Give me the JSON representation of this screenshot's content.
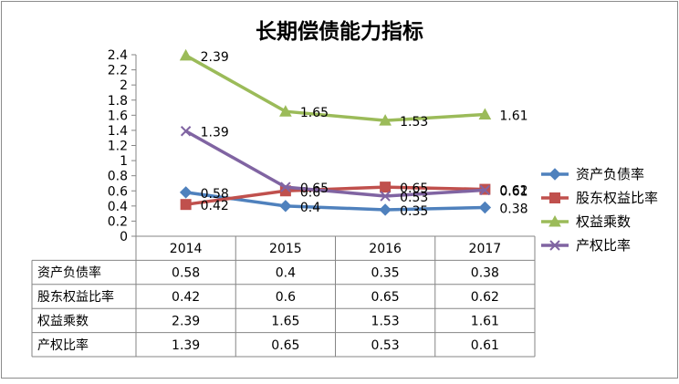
{
  "chart_data": {
    "type": "line",
    "title": "长期偿债能力指标",
    "categories": [
      "2014",
      "2015",
      "2016",
      "2017"
    ],
    "ylim": [
      0,
      2.4
    ],
    "yticks": [
      "0",
      "0.2",
      "0.4",
      "0.6",
      "0.8",
      "1",
      "1.2",
      "1.4",
      "1.6",
      "1.8",
      "2",
      "2.2",
      "2.4"
    ],
    "xlabel": "",
    "ylabel": "",
    "grid": false,
    "legend_position": "right",
    "series": [
      {
        "name": "资产负债率",
        "values": [
          0.58,
          0.4,
          0.35,
          0.38
        ],
        "labels": [
          "0.58",
          "0.4",
          "0.35",
          "0.38"
        ],
        "color": "#4F81BD",
        "marker": "diamond"
      },
      {
        "name": "股东权益比率",
        "values": [
          0.42,
          0.6,
          0.65,
          0.62
        ],
        "labels": [
          "0.42",
          "0.6",
          "0.65",
          "0.62"
        ],
        "color": "#C0504D",
        "marker": "square"
      },
      {
        "name": "权益乘数",
        "values": [
          2.39,
          1.65,
          1.53,
          1.61
        ],
        "labels": [
          "2.39",
          "1.65",
          "1.53",
          "1.61"
        ],
        "color": "#9BBB59",
        "marker": "triangle"
      },
      {
        "name": "产权比率",
        "values": [
          1.39,
          0.65,
          0.53,
          0.61
        ],
        "labels": [
          "1.39",
          "0.65",
          "0.53",
          "0.61"
        ],
        "color": "#8064A2",
        "marker": "x"
      }
    ]
  }
}
